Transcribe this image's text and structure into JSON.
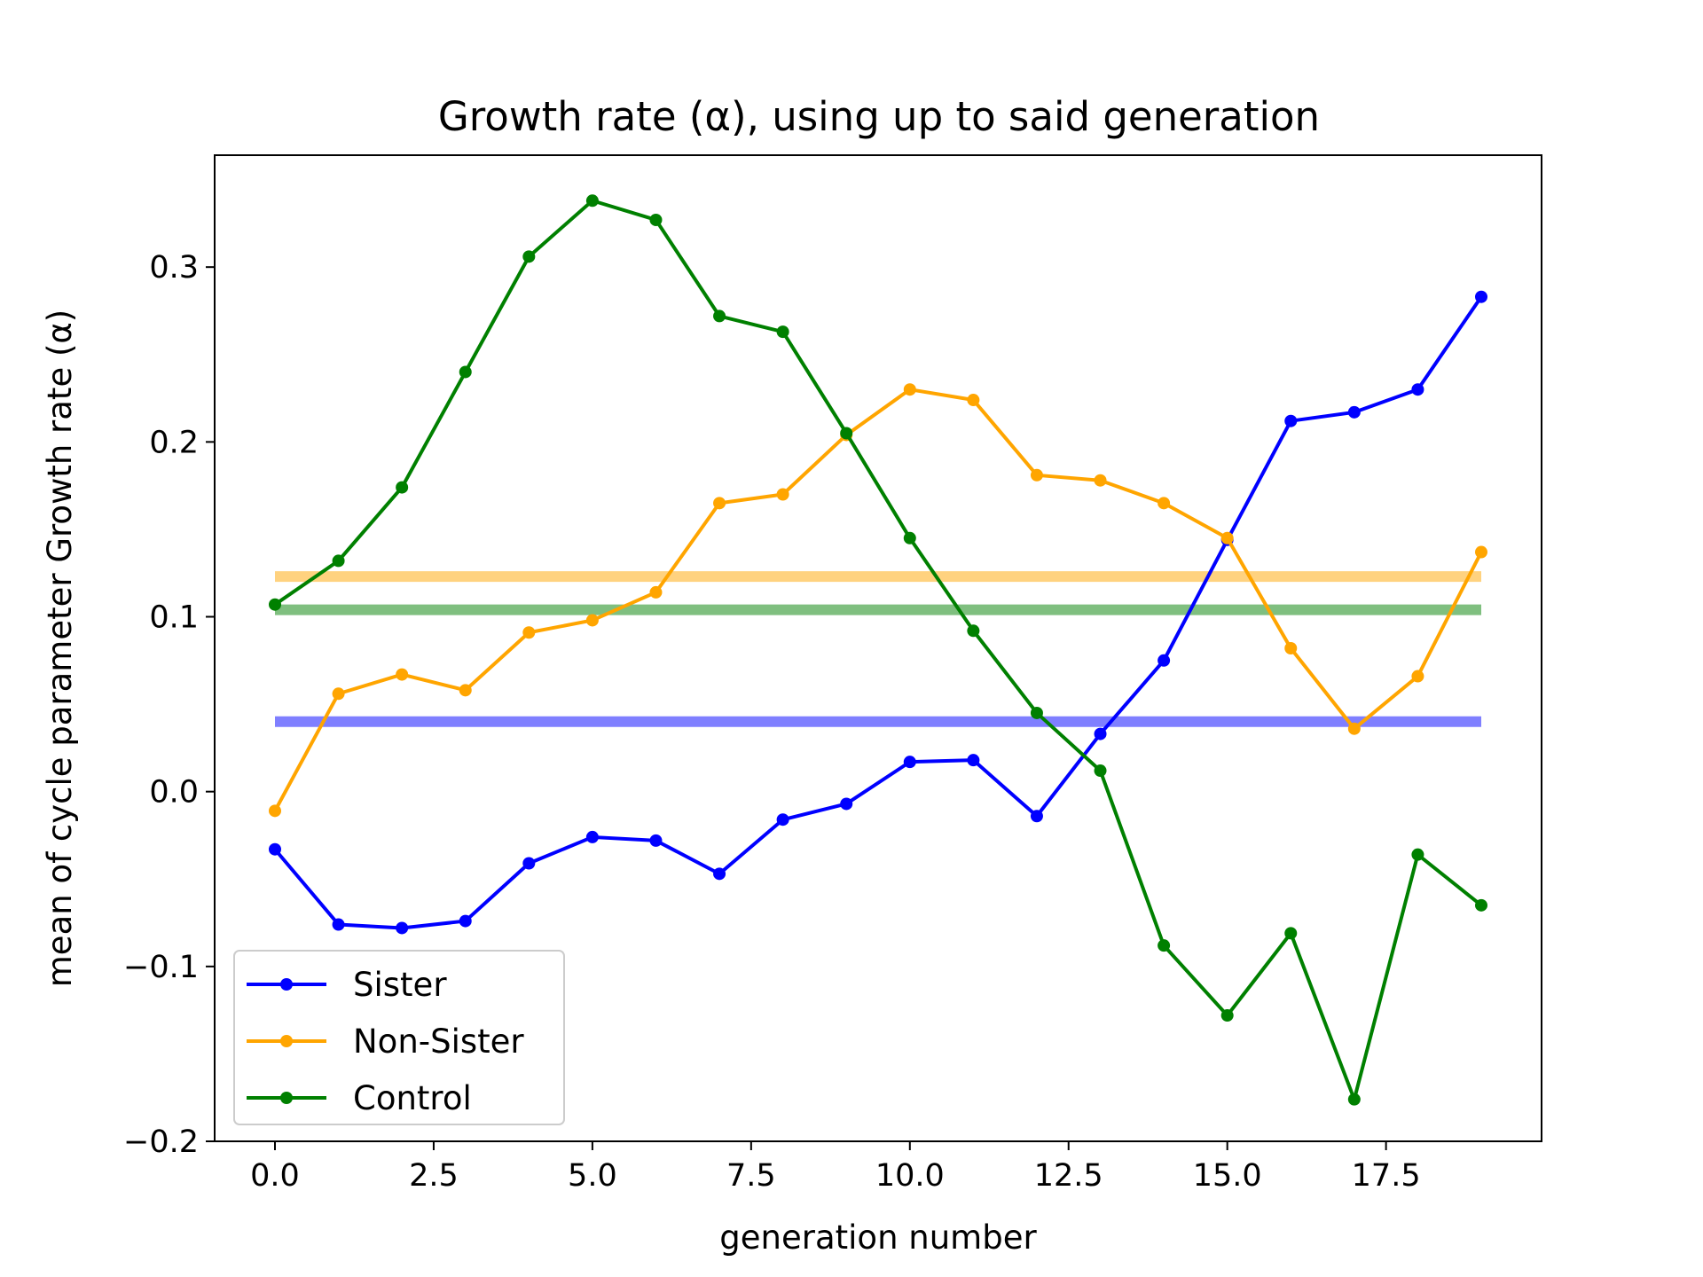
{
  "chart_data": {
    "type": "line",
    "title": "Growth rate (α), using up to said generation",
    "xlabel": "generation number",
    "ylabel": "mean of cycle parameter Growth rate (α)",
    "xlim": [
      -0.95,
      19.95
    ],
    "ylim": [
      -0.2,
      0.364
    ],
    "xticks": [
      0.0,
      2.5,
      5.0,
      7.5,
      10.0,
      12.5,
      15.0,
      17.5
    ],
    "xtick_labels": [
      "0.0",
      "2.5",
      "5.0",
      "7.5",
      "10.0",
      "12.5",
      "15.0",
      "17.5"
    ],
    "yticks": [
      -0.2,
      -0.1,
      0.0,
      0.1,
      0.2,
      0.3
    ],
    "ytick_labels": [
      "−0.2",
      "−0.1",
      "0.0",
      "0.1",
      "0.2",
      "0.3"
    ],
    "legend_position": "lower-left",
    "x": [
      0,
      1,
      2,
      3,
      4,
      5,
      6,
      7,
      8,
      9,
      10,
      11,
      12,
      13,
      14,
      15,
      16,
      17,
      18,
      19
    ],
    "series": [
      {
        "name": "Sister",
        "color": "#0000ff",
        "values": [
          -0.033,
          -0.076,
          -0.078,
          -0.074,
          -0.041,
          -0.026,
          -0.028,
          -0.047,
          -0.016,
          -0.007,
          0.017,
          0.018,
          -0.014,
          0.033,
          0.075,
          0.144,
          0.212,
          0.217,
          0.23,
          0.283
        ],
        "mean": 0.04
      },
      {
        "name": "Non-Sister",
        "color": "#ffa500",
        "values": [
          -0.011,
          0.056,
          0.067,
          0.058,
          0.091,
          0.098,
          0.114,
          0.165,
          0.17,
          0.204,
          0.23,
          0.224,
          0.181,
          0.178,
          0.165,
          0.145,
          0.082,
          0.036,
          0.066,
          0.137
        ],
        "mean": 0.123
      },
      {
        "name": "Control",
        "color": "#008000",
        "values": [
          0.107,
          0.132,
          0.174,
          0.24,
          0.306,
          0.338,
          0.327,
          0.272,
          0.263,
          0.205,
          0.145,
          0.092,
          0.045,
          0.012,
          -0.088,
          -0.128,
          -0.081,
          -0.176,
          -0.036,
          -0.065
        ],
        "mean": 0.104
      }
    ]
  }
}
